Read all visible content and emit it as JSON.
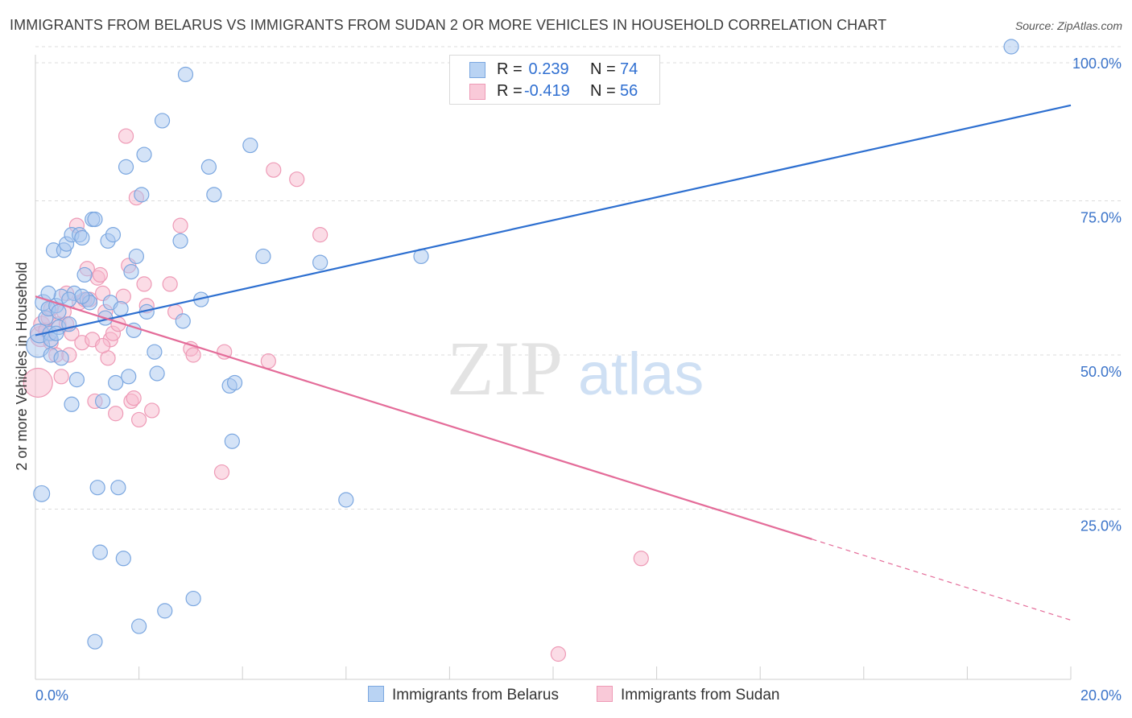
{
  "title": "IMMIGRANTS FROM BELARUS VS IMMIGRANTS FROM SUDAN 2 OR MORE VEHICLES IN HOUSEHOLD CORRELATION CHART",
  "source": "Source: ZipAtlas.com",
  "watermark": {
    "zip": "ZIP",
    "atlas": "atlas"
  },
  "colors": {
    "belarus_fill": "#a9c8f0",
    "belarus_stroke": "#7ba7e0",
    "belarus_line": "#2d6fd0",
    "sudan_fill": "#f7b9cd",
    "sudan_stroke": "#ee9ab6",
    "sudan_line": "#e46c99",
    "axis_text": "#3a73c9",
    "grid": "#dcdcdc"
  },
  "legend": {
    "rows": [
      {
        "r_label": "R =",
        "r_value": " 0.239",
        "n_label": "N =",
        "n_value": "74"
      },
      {
        "r_label": "R =",
        "r_value": "-0.419",
        "n_label": "N =",
        "n_value": "56"
      }
    ]
  },
  "bottom_legend": [
    "Immigrants from Belarus",
    "Immigrants from Sudan"
  ],
  "chart_data": {
    "type": "scatter",
    "title": "IMMIGRANTS FROM BELARUS VS IMMIGRANTS FROM SUDAN 2 OR MORE VEHICLES IN HOUSEHOLD CORRELATION CHART",
    "xlabel": "",
    "ylabel": "2 or more Vehicles in Household",
    "xlim": [
      0,
      20
    ],
    "ylim": [
      0,
      100
    ],
    "x_ticks": [
      {
        "value": 0,
        "label": "0.0%"
      },
      {
        "value": 20,
        "label": "20.0%"
      }
    ],
    "y_ticks": [
      {
        "value": 25,
        "label": "25.0%"
      },
      {
        "value": 50,
        "label": "50.0%"
      },
      {
        "value": 75,
        "label": "75.0%"
      },
      {
        "value": 100,
        "label": "100.0%"
      }
    ],
    "series": [
      {
        "name": "Immigrants from Belarus",
        "r": 0.239,
        "n": 74,
        "trend": {
          "x0": 0,
          "y0": 53.2,
          "x1": 20,
          "y1": 90.5,
          "dashed_from": null
        },
        "points": [
          [
            0.05,
            51.5,
            1.6
          ],
          [
            0.08,
            53.5,
            1.3
          ],
          [
            0.15,
            58.5,
            1.1
          ],
          [
            0.12,
            27.5,
            1.1
          ],
          [
            0.2,
            56.0,
            1.0
          ],
          [
            0.25,
            57.5,
            1.0
          ],
          [
            0.28,
            53.5,
            1.0
          ],
          [
            0.3,
            52.5,
            1.0
          ],
          [
            0.35,
            67.0,
            1.0
          ],
          [
            0.4,
            58.0,
            1.0
          ],
          [
            0.45,
            54.5,
            1.0
          ],
          [
            0.5,
            59.5,
            1.0
          ],
          [
            0.55,
            67.0,
            1.0
          ],
          [
            0.6,
            68.0,
            1.0
          ],
          [
            0.65,
            55.0,
            1.0
          ],
          [
            0.7,
            69.5,
            1.0
          ],
          [
            0.75,
            60.0,
            1.0
          ],
          [
            0.8,
            46.0,
            1.0
          ],
          [
            0.85,
            69.5,
            1.0
          ],
          [
            0.9,
            69.0,
            1.0
          ],
          [
            0.95,
            63.0,
            1.0
          ],
          [
            1.0,
            59.0,
            1.0
          ],
          [
            1.05,
            58.5,
            1.0
          ],
          [
            1.1,
            72.0,
            1.0
          ],
          [
            1.15,
            72.0,
            1.0
          ],
          [
            1.2,
            28.5,
            1.0
          ],
          [
            1.25,
            18.0,
            1.0
          ],
          [
            1.3,
            42.5,
            1.0
          ],
          [
            1.35,
            56.0,
            1.0
          ],
          [
            1.4,
            68.5,
            1.0
          ],
          [
            1.45,
            58.5,
            1.0
          ],
          [
            1.5,
            69.5,
            1.0
          ],
          [
            1.55,
            45.5,
            1.0
          ],
          [
            1.6,
            28.5,
            1.0
          ],
          [
            1.65,
            57.5,
            1.0
          ],
          [
            1.7,
            17.0,
            1.0
          ],
          [
            1.75,
            80.5,
            1.0
          ],
          [
            1.8,
            46.5,
            1.0
          ],
          [
            1.85,
            63.5,
            1.0
          ],
          [
            1.9,
            54.0,
            1.0
          ],
          [
            1.95,
            66.0,
            1.0
          ],
          [
            2.0,
            6.0,
            1.0
          ],
          [
            2.05,
            76.0,
            1.0
          ],
          [
            2.1,
            82.5,
            1.0
          ],
          [
            2.15,
            57.0,
            1.0
          ],
          [
            2.3,
            50.5,
            1.0
          ],
          [
            2.35,
            47.0,
            1.0
          ],
          [
            2.45,
            88.0,
            1.0
          ],
          [
            2.5,
            8.5,
            1.0
          ],
          [
            2.8,
            68.5,
            1.0
          ],
          [
            2.85,
            55.5,
            1.0
          ],
          [
            2.9,
            95.5,
            1.0
          ],
          [
            3.05,
            10.5,
            1.0
          ],
          [
            3.2,
            59.0,
            1.0
          ],
          [
            3.35,
            80.5,
            1.0
          ],
          [
            3.45,
            76.0,
            1.0
          ],
          [
            3.75,
            45.0,
            1.0
          ],
          [
            3.8,
            36.0,
            1.0
          ],
          [
            3.85,
            45.5,
            1.0
          ],
          [
            4.15,
            84.0,
            1.0
          ],
          [
            4.4,
            66.0,
            1.0
          ],
          [
            5.5,
            65.0,
            1.0
          ],
          [
            6.0,
            26.5,
            1.0
          ],
          [
            7.45,
            66.0,
            1.0
          ],
          [
            18.85,
            100.0,
            1.0
          ],
          [
            0.3,
            50.0,
            1.0
          ],
          [
            0.5,
            49.5,
            1.0
          ],
          [
            0.7,
            42.0,
            1.0
          ],
          [
            1.15,
            3.5,
            1.0
          ],
          [
            0.45,
            57.0,
            1.0
          ],
          [
            0.65,
            59.0,
            1.0
          ],
          [
            0.9,
            59.5,
            1.0
          ],
          [
            0.25,
            60.0,
            1.0
          ],
          [
            0.4,
            53.5,
            1.0
          ]
        ]
      },
      {
        "name": "Immigrants from Sudan",
        "r": -0.419,
        "n": 56,
        "trend": {
          "x0": 0,
          "y0": 59.5,
          "x1": 20,
          "y1": 7.0,
          "dashed_from": 15.0
        },
        "points": [
          [
            0.05,
            45.5,
            2.0
          ],
          [
            0.1,
            53.0,
            1.4
          ],
          [
            0.12,
            55.0,
            1.1
          ],
          [
            0.2,
            54.0,
            1.0
          ],
          [
            0.25,
            56.0,
            1.0
          ],
          [
            0.3,
            52.0,
            1.0
          ],
          [
            0.4,
            50.0,
            1.0
          ],
          [
            0.45,
            55.0,
            1.0
          ],
          [
            0.5,
            46.5,
            1.0
          ],
          [
            0.55,
            57.0,
            1.0
          ],
          [
            0.6,
            60.0,
            1.0
          ],
          [
            0.65,
            50.0,
            1.0
          ],
          [
            0.7,
            53.5,
            1.0
          ],
          [
            0.8,
            71.0,
            1.0
          ],
          [
            0.85,
            58.5,
            1.0
          ],
          [
            0.9,
            52.0,
            1.0
          ],
          [
            0.95,
            59.0,
            1.0
          ],
          [
            1.0,
            64.0,
            1.0
          ],
          [
            1.05,
            59.0,
            1.0
          ],
          [
            1.1,
            52.5,
            1.0
          ],
          [
            1.15,
            42.5,
            1.0
          ],
          [
            1.2,
            62.5,
            1.0
          ],
          [
            1.25,
            63.0,
            1.0
          ],
          [
            1.3,
            60.0,
            1.0
          ],
          [
            1.35,
            57.0,
            1.0
          ],
          [
            1.4,
            49.5,
            1.0
          ],
          [
            1.45,
            52.5,
            1.0
          ],
          [
            1.5,
            53.5,
            1.0
          ],
          [
            1.55,
            40.5,
            1.0
          ],
          [
            1.6,
            55.0,
            1.0
          ],
          [
            1.7,
            59.5,
            1.0
          ],
          [
            1.75,
            85.5,
            1.0
          ],
          [
            1.8,
            64.5,
            1.0
          ],
          [
            1.85,
            42.5,
            1.0
          ],
          [
            1.9,
            43.0,
            1.0
          ],
          [
            1.95,
            75.5,
            1.0
          ],
          [
            2.0,
            39.5,
            1.0
          ],
          [
            2.1,
            61.5,
            1.0
          ],
          [
            2.15,
            58.0,
            1.0
          ],
          [
            2.25,
            41.0,
            1.0
          ],
          [
            2.6,
            61.5,
            1.0
          ],
          [
            2.7,
            57.0,
            1.0
          ],
          [
            2.8,
            71.0,
            1.0
          ],
          [
            3.0,
            51.0,
            1.0
          ],
          [
            3.05,
            50.0,
            1.0
          ],
          [
            3.6,
            31.0,
            1.0
          ],
          [
            3.65,
            50.5,
            1.0
          ],
          [
            4.5,
            49.0,
            1.0
          ],
          [
            4.6,
            80.0,
            1.0
          ],
          [
            5.05,
            78.5,
            1.0
          ],
          [
            5.5,
            69.5,
            1.0
          ],
          [
            11.7,
            17.0,
            1.0
          ],
          [
            10.1,
            1.5,
            1.0
          ],
          [
            0.3,
            57.5,
            1.0
          ],
          [
            0.6,
            55.0,
            1.0
          ],
          [
            1.3,
            51.5,
            1.0
          ]
        ]
      }
    ]
  }
}
